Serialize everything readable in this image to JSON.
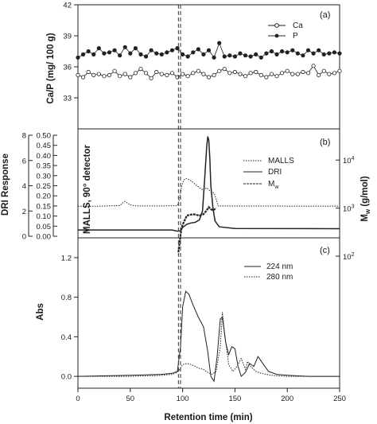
{
  "chart_data": [
    {
      "id": "a",
      "type": "line",
      "panel_label": "(a)",
      "ylabel": "Ca/P (mg/ 100 g)",
      "ylim": [
        30,
        42
      ],
      "yticks": [
        "33",
        "36",
        "39",
        "42"
      ],
      "xlim": [
        0,
        250
      ],
      "series": [
        {
          "name": "Ca",
          "marker": "open-circle",
          "x": [
            0,
            5,
            10,
            15,
            20,
            25,
            30,
            35,
            40,
            45,
            50,
            55,
            60,
            65,
            70,
            75,
            80,
            85,
            90,
            95,
            100,
            105,
            110,
            115,
            120,
            125,
            130,
            135,
            140,
            145,
            150,
            155,
            160,
            165,
            170,
            175,
            180,
            185,
            190,
            195,
            200,
            205,
            210,
            215,
            220,
            225,
            230,
            235,
            240,
            245,
            250
          ],
          "values": [
            35.2,
            35.0,
            35.5,
            35.2,
            35.3,
            35.1,
            35.2,
            35.6,
            35.1,
            35.3,
            35.0,
            35.4,
            35.8,
            35.4,
            34.9,
            35.5,
            35.3,
            35.2,
            35.4,
            35.0,
            35.3,
            35.1,
            35.4,
            35.6,
            35.3,
            35.0,
            35.2,
            35.6,
            35.8,
            35.4,
            35.5,
            35.3,
            35.1,
            35.4,
            35.5,
            35.2,
            35.0,
            35.3,
            35.1,
            35.4,
            35.6,
            35.3,
            35.3,
            35.5,
            35.4,
            36.1,
            35.2,
            35.6,
            35.3,
            35.4,
            35.6
          ]
        },
        {
          "name": "P",
          "marker": "filled-circle",
          "x": [
            0,
            5,
            10,
            15,
            20,
            25,
            30,
            35,
            40,
            45,
            50,
            55,
            60,
            65,
            70,
            75,
            80,
            85,
            90,
            95,
            100,
            105,
            110,
            115,
            120,
            125,
            130,
            135,
            140,
            145,
            150,
            155,
            160,
            165,
            170,
            175,
            180,
            185,
            190,
            195,
            200,
            205,
            210,
            215,
            220,
            225,
            230,
            235,
            240,
            245,
            250
          ],
          "values": [
            36.9,
            37.2,
            37.5,
            37.2,
            37.8,
            37.3,
            37.4,
            37.6,
            37.1,
            37.9,
            37.3,
            37.8,
            37.2,
            37.0,
            37.6,
            37.3,
            37.2,
            37.4,
            37.6,
            37.8,
            37.2,
            37.0,
            37.4,
            37.7,
            37.2,
            37.6,
            36.9,
            38.3,
            37.0,
            37.1,
            37.0,
            37.3,
            37.1,
            37.0,
            37.2,
            36.9,
            37.3,
            37.5,
            37.2,
            37.5,
            37.4,
            37.6,
            37.3,
            37.1,
            37.6,
            37.3,
            37.6,
            37.2,
            37.3,
            37.4,
            37.3
          ]
        }
      ]
    },
    {
      "id": "b",
      "type": "line",
      "panel_label": "(b)",
      "ylabel_outer": "DRI Response",
      "ylim_outer": [
        0,
        8
      ],
      "yticks_outer": [
        "0",
        "2",
        "4",
        "6",
        "8"
      ],
      "ylabel_inner": "MALLS, 90° detector",
      "ylim_inner": [
        0.0,
        0.5
      ],
      "yticks_inner": [
        "0.00",
        "0.05",
        "0.10",
        "0.15",
        "0.20",
        "0.25",
        "0.30",
        "0.35",
        "0.40",
        "0.45",
        "0.50"
      ],
      "ylabel_right": "Mw (g/mol)",
      "ylim_right_log10": [
        2,
        4.6
      ],
      "yticks_right": [
        {
          "base": "10",
          "exp": "2"
        },
        {
          "base": "10",
          "exp": "3"
        },
        {
          "base": "10",
          "exp": "4"
        }
      ],
      "xlim": [
        0,
        250
      ],
      "series": [
        {
          "name": "MALLS",
          "style": "dotted",
          "axis": "inner",
          "x": [
            0,
            20,
            40,
            43,
            45,
            47,
            50,
            53,
            57,
            65,
            80,
            95,
            97,
            99,
            101,
            103,
            105,
            108,
            112,
            116,
            120,
            123,
            125,
            127,
            130,
            132,
            134,
            250
          ],
          "values": [
            0.149,
            0.149,
            0.152,
            0.166,
            0.173,
            0.165,
            0.155,
            0.152,
            0.15,
            0.15,
            0.15,
            0.151,
            0.185,
            0.245,
            0.278,
            0.286,
            0.283,
            0.275,
            0.258,
            0.24,
            0.228,
            0.24,
            0.23,
            0.22,
            0.215,
            0.185,
            0.15,
            0.149
          ]
        },
        {
          "name": "DRI",
          "style": "solid",
          "axis": "outer",
          "x": [
            0,
            90,
            95,
            98,
            100,
            104,
            108,
            112,
            116,
            119,
            121,
            123,
            124,
            125,
            126,
            127,
            129,
            131,
            135,
            150,
            250
          ],
          "values": [
            0.5,
            0.5,
            0.4,
            0.42,
            0.7,
            0.95,
            1.05,
            1.1,
            1.3,
            2.0,
            4.4,
            7.1,
            7.9,
            7.6,
            6.2,
            4.0,
            2.2,
            1.2,
            0.75,
            0.62,
            0.6
          ]
        },
        {
          "name": "Mw",
          "style": "solid",
          "axis": "right",
          "x": [
            96,
            99,
            104,
            110,
            116,
            120,
            123,
            125,
            127,
            129,
            132
          ],
          "values": [
            120,
            400,
            700,
            750,
            700,
            750,
            900,
            1050,
            950,
            900,
            1000
          ]
        }
      ],
      "legend": [
        "MALLS",
        "DRI",
        "Mw"
      ]
    },
    {
      "id": "c",
      "type": "line",
      "panel_label": "(c)",
      "ylabel": "Abs",
      "ylim": [
        -0.12,
        1.4
      ],
      "yticks": [
        "0.0",
        "0.4",
        "0.8",
        "1.2"
      ],
      "xlabel": "Retention time (min)",
      "xlim": [
        0,
        250
      ],
      "xticks": [
        "0",
        "50",
        "100",
        "150",
        "200",
        "250"
      ],
      "series": [
        {
          "name": "224 nm",
          "style": "solid",
          "x": [
            0,
            50,
            80,
            90,
            95,
            98,
            100,
            103,
            106,
            110,
            115,
            120,
            124,
            127,
            130,
            133,
            136,
            138,
            141,
            144,
            147,
            150,
            153,
            156,
            160,
            164,
            168,
            172,
            176,
            182,
            190,
            200,
            220,
            250
          ],
          "values": [
            0.0,
            0.01,
            0.02,
            0.03,
            0.05,
            0.3,
            0.7,
            0.86,
            0.83,
            0.72,
            0.6,
            0.5,
            0.25,
            0.0,
            -0.05,
            0.2,
            0.58,
            0.6,
            0.35,
            0.22,
            0.3,
            0.28,
            0.1,
            0.0,
            0.04,
            0.13,
            0.1,
            0.2,
            0.14,
            0.05,
            0.02,
            0.01,
            0.0,
            0.0
          ]
        },
        {
          "name": "280 nm",
          "style": "dotted",
          "x": [
            0,
            50,
            80,
            90,
            95,
            98,
            100,
            104,
            108,
            112,
            116,
            120,
            124,
            128,
            132,
            136,
            138,
            140,
            144,
            148,
            152,
            156,
            160,
            162,
            165,
            170,
            175,
            185,
            200,
            250
          ],
          "values": [
            0.0,
            0.0,
            0.01,
            0.02,
            0.04,
            0.08,
            0.12,
            0.13,
            0.12,
            0.1,
            0.08,
            0.07,
            0.04,
            0.02,
            0.05,
            0.3,
            0.65,
            0.45,
            0.12,
            0.05,
            0.1,
            0.18,
            0.07,
            0.15,
            0.1,
            0.05,
            0.03,
            0.01,
            0.0,
            0.0
          ]
        }
      ]
    }
  ],
  "shared": {
    "vline_x": [
      96,
      98
    ],
    "xlabel": "Retention time (min)"
  }
}
